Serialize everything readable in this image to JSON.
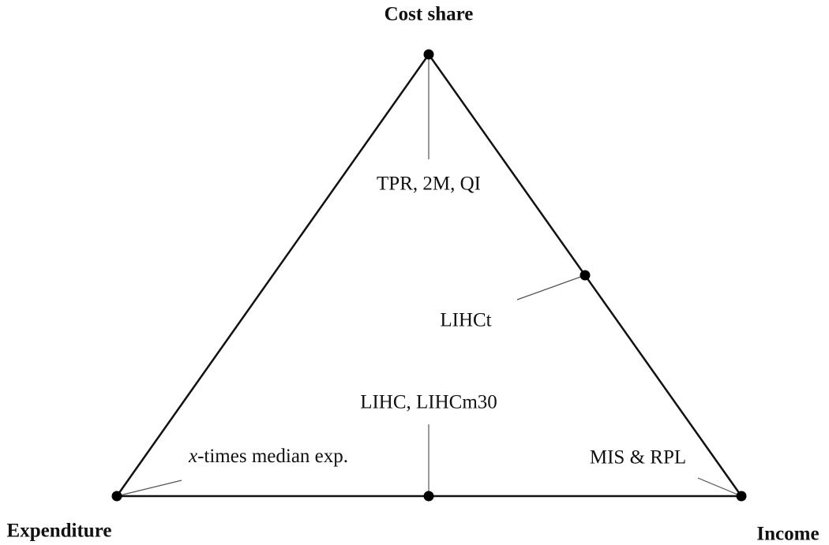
{
  "vertices": {
    "top": "Cost share",
    "left": "Expenditure",
    "right": "Income"
  },
  "labels": {
    "top": "TPR, 2M, QI",
    "right_edge": "LIHCt",
    "bottom_edge": "LIHC, LIHCm30",
    "left_corner": {
      "variable": "x",
      "text": "-times median exp."
    },
    "right_corner": "MIS & RPL"
  }
}
